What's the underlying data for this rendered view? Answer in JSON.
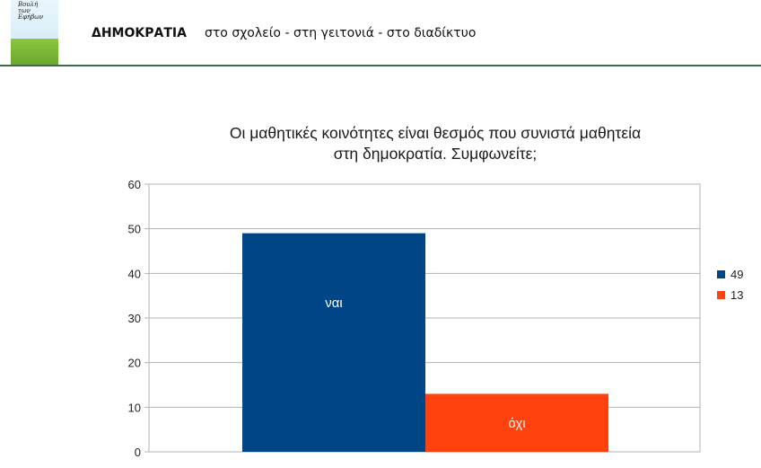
{
  "header": {
    "logo_text": "Βουλή\n των\nΕφήβων",
    "title": "ΔΗΜΟΚΡΑΤΙΑ",
    "subtitle": "στο σχολείο - στη γειτονιά - στο διαδίκτυο"
  },
  "colors": {
    "header_rule": "#3b6e44",
    "bar_yes": "#004586",
    "bar_no": "#ff420e",
    "grid": "#b3b3b3"
  },
  "chart_data": {
    "type": "bar",
    "title_lines": [
      "Οι μαθητικές κοινότητες είναι θεσμός που συνιστά μαθητεία",
      "στη δημοκρατία. Συμφωνείτε;"
    ],
    "categories": [
      "ναι",
      "όχι"
    ],
    "values": [
      49,
      13
    ],
    "ylim": [
      0,
      60
    ],
    "yticks": [
      "0",
      "10",
      "20",
      "30",
      "40",
      "50",
      "60"
    ],
    "grid": true,
    "legend_position": "right",
    "legend": [
      {
        "label": "49",
        "color": "#004586"
      },
      {
        "label": "13",
        "color": "#ff420e"
      }
    ]
  }
}
